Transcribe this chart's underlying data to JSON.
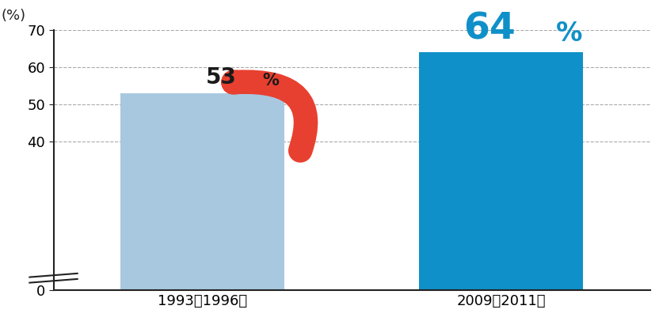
{
  "categories": [
    "1993～1996年",
    "2009～2011年"
  ],
  "values": [
    53,
    64
  ],
  "bar_colors": [
    "#a8c8e0",
    "#1090c8"
  ],
  "label1": "53",
  "label1_pct": "%",
  "label2": "64",
  "label2_pct": "%",
  "label1_color": "#1a1a1a",
  "label2_color": "#1090c8",
  "ylabel": "(%)",
  "ylim": [
    0,
    70
  ],
  "yticks": [
    0,
    40,
    50,
    60,
    70
  ],
  "grid_color": "#aaaaaa",
  "background_color": "#ffffff",
  "arrow_color": "#e84030",
  "bar_width": 0.28
}
